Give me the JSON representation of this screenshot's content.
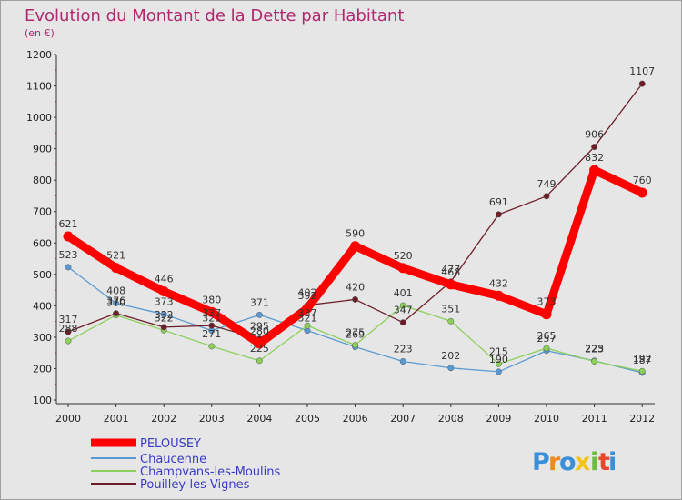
{
  "chart_data": {
    "type": "line",
    "title": "Evolution du Montant de la Dette par Habitant",
    "subtitle": "(en €)",
    "xlabel": "",
    "ylabel": "",
    "ylim": [
      100,
      1200
    ],
    "yticks": [
      100,
      200,
      300,
      400,
      500,
      600,
      700,
      800,
      900,
      1000,
      1100,
      1200
    ],
    "grid": false,
    "legend_position": "bottom-left",
    "x": [
      "2000",
      "2001",
      "2002",
      "2003",
      "2004",
      "2005",
      "2006",
      "2007",
      "2008",
      "2009",
      "2010",
      "2011",
      "2012"
    ],
    "series": [
      {
        "name": "PELOUSEY",
        "color": "#ff0000",
        "values": [
          621,
          521,
          446,
          380,
          280,
          392,
          590,
          520,
          468,
          432,
          373,
          832,
          760
        ]
      },
      {
        "name": "Chaucenne",
        "color": "#5a9ad2",
        "values": [
          523,
          408,
          373,
          321,
          371,
          321,
          269,
          223,
          202,
          190,
          257,
          225,
          187
        ]
      },
      {
        "name": "Champvans-les-Moulins",
        "color": "#8cd05a",
        "values": [
          288,
          370,
          322,
          271,
          225,
          337,
          275,
          401,
          351,
          215,
          265,
          223,
          192
        ]
      },
      {
        "name": "Pouilley-les-Vignes",
        "color": "#6e1e28",
        "values": [
          317,
          376,
          332,
          337,
          295,
          402,
          420,
          347,
          477,
          691,
          749,
          906,
          1107
        ]
      }
    ]
  },
  "brand": {
    "letters": [
      {
        "ch": "P",
        "color": "#3a8fd8"
      },
      {
        "ch": "r",
        "color": "#f08a1c"
      },
      {
        "ch": "o",
        "color": "#3a8fd8"
      },
      {
        "ch": "x",
        "color": "#f3c21b"
      },
      {
        "ch": "i",
        "color": "#6cbd3c"
      },
      {
        "ch": "t",
        "color": "#e8472c"
      },
      {
        "ch": "i",
        "color": "#3a8fd8"
      }
    ]
  }
}
